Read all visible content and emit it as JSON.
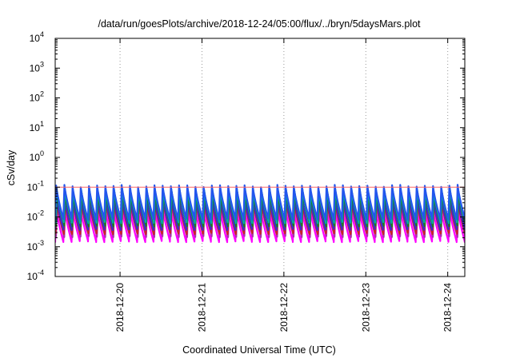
{
  "chart_data": {
    "type": "line",
    "title": "/data/run/goesPlots/archive/2018-12-24/05:00/flux/../bryn/5daysMars.plot",
    "xlabel": "Coordinated Universal Time (UTC)",
    "ylabel": "cSv/day",
    "x_scale": "time",
    "y_scale": "log",
    "xlim": [
      "2018-12-19T05:00",
      "2018-12-24T05:00"
    ],
    "ylim": [
      0.0001,
      10000
    ],
    "grid": true,
    "x_ticks": [
      "2018-12-20",
      "2018-12-21",
      "2018-12-22",
      "2018-12-23",
      "2018-12-24"
    ],
    "y_ticks": [
      {
        "base": "10",
        "exp": "-4",
        "value": 0.0001
      },
      {
        "base": "10",
        "exp": "-3",
        "value": 0.001
      },
      {
        "base": "10",
        "exp": "-2",
        "value": 0.01
      },
      {
        "base": "10",
        "exp": "-1",
        "value": 0.1
      },
      {
        "base": "10",
        "exp": "0",
        "value": 1
      },
      {
        "base": "10",
        "exp": "1",
        "value": 10
      },
      {
        "base": "10",
        "exp": "2",
        "value": 100
      },
      {
        "base": "10",
        "exp": "3",
        "value": 1000
      },
      {
        "base": "10",
        "exp": "4",
        "value": 10000
      }
    ],
    "reference_line": {
      "value": 0.1,
      "color": "#ff6666"
    },
    "pattern": {
      "cycle_hours": 2.4,
      "description_free": true
    },
    "series": [
      {
        "color": "#2255ee",
        "peak": 0.11,
        "trough": 0.0085
      },
      {
        "color": "#00aaaa",
        "peak": 0.085,
        "trough": 0.0065
      },
      {
        "color": "#1f7f1f",
        "peak": 0.065,
        "trough": 0.005
      },
      {
        "color": "#3b2bd0",
        "peak": 0.05,
        "trough": 0.0038
      },
      {
        "color": "#cc2222",
        "peak": 0.035,
        "trough": 0.0028
      },
      {
        "color": "#aa33aa",
        "peak": 0.028,
        "trough": 0.0022
      },
      {
        "color": "#ff00ff",
        "peak": 0.02,
        "trough": 0.0015
      }
    ]
  }
}
